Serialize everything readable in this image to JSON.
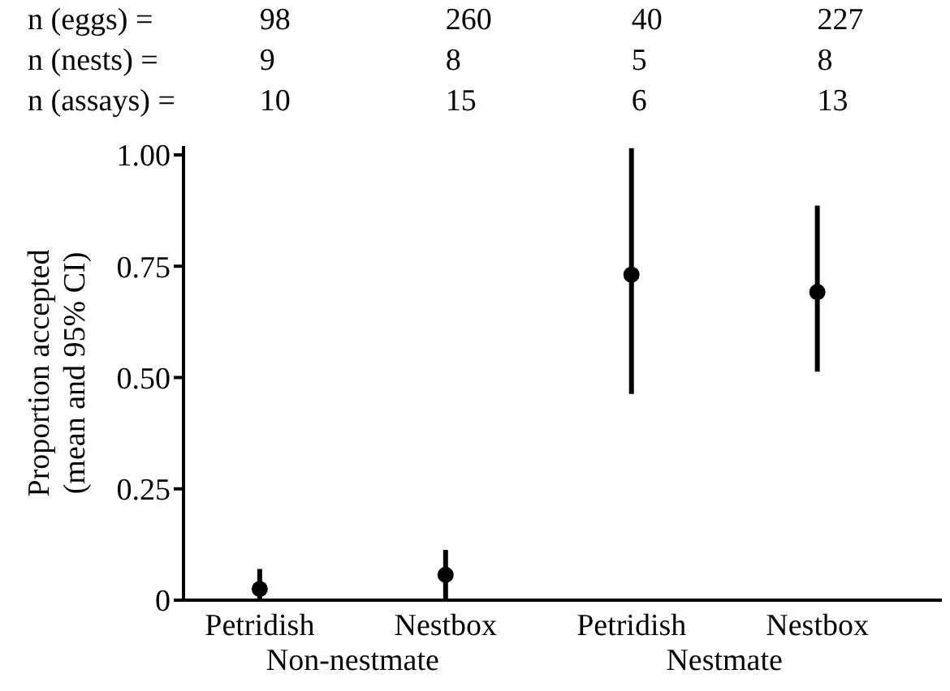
{
  "chart_data": {
    "type": "scatter",
    "ylabel": "Proportion accepted\n(mean and 95% CI)",
    "categories": [
      "Petridish",
      "Nestbox",
      "Petridish",
      "Nestbox"
    ],
    "series": [
      {
        "color": "#000000",
        "values": [
          0.025,
          0.057,
          0.731,
          0.692
        ],
        "errors": [
          [
            0,
            0.07
          ],
          [
            0,
            0.113
          ],
          [
            0.463,
            1.015
          ],
          [
            0.513,
            0.886
          ]
        ]
      }
    ],
    "ylim": [
      0,
      1.02
    ],
    "yticks": [
      0,
      0.25,
      {
        "value": 0.5,
        "label": "0.50"
      },
      0.75,
      {
        "value": 1,
        "label": "1.00"
      }
    ],
    "marker": "circle",
    "grid": false,
    "legend": false,
    "annotations": [
      "n (eggs) =",
      "98",
      "260",
      "40",
      "227",
      "n (nests) =",
      "9",
      "8",
      "5",
      "8",
      "n (assays) =",
      "10",
      "15",
      "6",
      "13",
      "Non-nestmate",
      "Nestmate"
    ]
  }
}
